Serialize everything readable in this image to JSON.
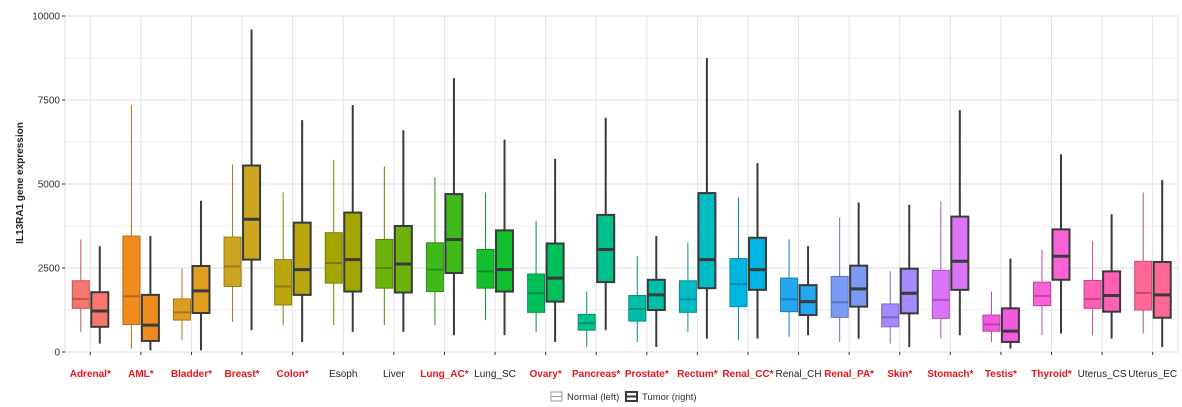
{
  "chart_data": {
    "type": "boxplot",
    "ylabel": "IL13RA1 gene expression",
    "ylim": [
      0,
      10000
    ],
    "yticks": [
      0,
      2500,
      5000,
      7500,
      10000
    ],
    "grid": true,
    "legend": {
      "placement": "bottom-center",
      "entries": [
        {
          "label": "Normal (left)"
        },
        {
          "label": "Tumor (right)"
        }
      ]
    },
    "categories": [
      {
        "name": "Adrenal*",
        "highlight": true,
        "color": "#F8766D",
        "normal": {
          "min": 600,
          "q1": 1300,
          "median": 1580,
          "q3": 2120,
          "max": 3350
        },
        "tumor": {
          "min": 250,
          "q1": 750,
          "median": 1220,
          "q3": 1780,
          "max": 3150
        }
      },
      {
        "name": "AML*",
        "highlight": true,
        "color": "#F08C1E",
        "normal": {
          "min": 100,
          "q1": 820,
          "median": 1660,
          "q3": 3450,
          "max": 7350
        },
        "tumor": {
          "min": 50,
          "q1": 330,
          "median": 800,
          "q3": 1700,
          "max": 3450
        }
      },
      {
        "name": "Bladder*",
        "highlight": true,
        "color": "#E09E20",
        "normal": {
          "min": 350,
          "q1": 950,
          "median": 1180,
          "q3": 1580,
          "max": 2480
        },
        "tumor": {
          "min": 50,
          "q1": 1160,
          "median": 1820,
          "q3": 2560,
          "max": 4500
        }
      },
      {
        "name": "Breast*",
        "highlight": true,
        "color": "#CDA51F",
        "normal": {
          "min": 900,
          "q1": 1950,
          "median": 2550,
          "q3": 3420,
          "max": 5580
        },
        "tumor": {
          "min": 650,
          "q1": 2750,
          "median": 3950,
          "q3": 5550,
          "max": 9600
        }
      },
      {
        "name": "Colon*",
        "highlight": true,
        "color": "#BAA60D",
        "normal": {
          "min": 800,
          "q1": 1400,
          "median": 1950,
          "q3": 2750,
          "max": 4750
        },
        "tumor": {
          "min": 300,
          "q1": 1700,
          "median": 2450,
          "q3": 3850,
          "max": 6900
        }
      },
      {
        "name": "Esoph",
        "highlight": false,
        "color": "#A3A500",
        "normal": {
          "min": 800,
          "q1": 2050,
          "median": 2650,
          "q3": 3550,
          "max": 5720
        },
        "tumor": {
          "min": 600,
          "q1": 1800,
          "median": 2750,
          "q3": 4150,
          "max": 7350
        }
      },
      {
        "name": "Liver",
        "highlight": false,
        "color": "#6DB20A",
        "normal": {
          "min": 800,
          "q1": 1900,
          "median": 2500,
          "q3": 3350,
          "max": 5520
        },
        "tumor": {
          "min": 600,
          "q1": 1770,
          "median": 2620,
          "q3": 3750,
          "max": 6600
        }
      },
      {
        "name": "Lung_AC*",
        "highlight": true,
        "color": "#3EBA1A",
        "normal": {
          "min": 800,
          "q1": 1800,
          "median": 2450,
          "q3": 3250,
          "max": 5200
        },
        "tumor": {
          "min": 500,
          "q1": 2350,
          "median": 3350,
          "q3": 4700,
          "max": 8150
        }
      },
      {
        "name": "Lung_SC",
        "highlight": false,
        "color": "#12C02E",
        "normal": {
          "min": 950,
          "q1": 1900,
          "median": 2400,
          "q3": 3050,
          "max": 4750
        },
        "tumor": {
          "min": 500,
          "q1": 1800,
          "median": 2450,
          "q3": 3620,
          "max": 6320
        }
      },
      {
        "name": "Ovary*",
        "highlight": true,
        "color": "#00C15A",
        "normal": {
          "min": 600,
          "q1": 1180,
          "median": 1750,
          "q3": 2320,
          "max": 3900
        },
        "tumor": {
          "min": 300,
          "q1": 1500,
          "median": 2200,
          "q3": 3230,
          "max": 5750
        }
      },
      {
        "name": "Pancreas*",
        "highlight": true,
        "color": "#00C08B",
        "normal": {
          "min": 150,
          "q1": 650,
          "median": 860,
          "q3": 1120,
          "max": 1800
        },
        "tumor": {
          "min": 650,
          "q1": 2080,
          "median": 3050,
          "q3": 4080,
          "max": 6970
        }
      },
      {
        "name": "Prostate*",
        "highlight": true,
        "color": "#00BFA8",
        "normal": {
          "min": 300,
          "q1": 920,
          "median": 1280,
          "q3": 1680,
          "max": 2850
        },
        "tumor": {
          "min": 150,
          "q1": 1250,
          "median": 1700,
          "q3": 2150,
          "max": 3450
        }
      },
      {
        "name": "Rectum*",
        "highlight": true,
        "color": "#00BCC4",
        "normal": {
          "min": 600,
          "q1": 1180,
          "median": 1570,
          "q3": 2120,
          "max": 3250
        },
        "tumor": {
          "min": 400,
          "q1": 1900,
          "median": 2750,
          "q3": 4730,
          "max": 8750
        }
      },
      {
        "name": "Renal_CC*",
        "highlight": true,
        "color": "#00B4E3",
        "normal": {
          "min": 350,
          "q1": 1350,
          "median": 2020,
          "q3": 2780,
          "max": 4600
        },
        "tumor": {
          "min": 400,
          "q1": 1850,
          "median": 2450,
          "q3": 3400,
          "max": 5620
        }
      },
      {
        "name": "Renal_CH",
        "highlight": false,
        "color": "#22A7F0",
        "normal": {
          "min": 450,
          "q1": 1200,
          "median": 1570,
          "q3": 2200,
          "max": 3350
        },
        "tumor": {
          "min": 500,
          "q1": 1100,
          "median": 1500,
          "q3": 1990,
          "max": 3150
        }
      },
      {
        "name": "Renal_PA*",
        "highlight": true,
        "color": "#7B9AF6",
        "normal": {
          "min": 300,
          "q1": 1030,
          "median": 1480,
          "q3": 2250,
          "max": 4000
        },
        "tumor": {
          "min": 400,
          "q1": 1350,
          "median": 1880,
          "q3": 2570,
          "max": 4450
        }
      },
      {
        "name": "Skin*",
        "highlight": true,
        "color": "#A58AFF",
        "normal": {
          "min": 250,
          "q1": 750,
          "median": 1030,
          "q3": 1430,
          "max": 2400
        },
        "tumor": {
          "min": 150,
          "q1": 1150,
          "median": 1750,
          "q3": 2480,
          "max": 4380
        }
      },
      {
        "name": "Stomach*",
        "highlight": true,
        "color": "#DA74F8",
        "normal": {
          "min": 400,
          "q1": 1000,
          "median": 1550,
          "q3": 2430,
          "max": 4480
        },
        "tumor": {
          "min": 500,
          "q1": 1850,
          "median": 2700,
          "q3": 4030,
          "max": 7200
        }
      },
      {
        "name": "Testis*",
        "highlight": true,
        "color": "#F25ADE",
        "normal": {
          "min": 300,
          "q1": 620,
          "median": 820,
          "q3": 1100,
          "max": 1800
        },
        "tumor": {
          "min": 100,
          "q1": 300,
          "median": 620,
          "q3": 1300,
          "max": 2780
        }
      },
      {
        "name": "Thyroid*",
        "highlight": true,
        "color": "#FB61D7",
        "normal": {
          "min": 500,
          "q1": 1380,
          "median": 1670,
          "q3": 2080,
          "max": 3050
        },
        "tumor": {
          "min": 550,
          "q1": 2150,
          "median": 2850,
          "q3": 3650,
          "max": 5880
        }
      },
      {
        "name": "Uterus_CS",
        "highlight": false,
        "color": "#FF5FB5",
        "normal": {
          "min": 500,
          "q1": 1300,
          "median": 1580,
          "q3": 2130,
          "max": 3300
        },
        "tumor": {
          "min": 400,
          "q1": 1200,
          "median": 1680,
          "q3": 2400,
          "max": 4100
        }
      },
      {
        "name": "Uterus_EC",
        "highlight": false,
        "color": "#FF6896",
        "normal": {
          "min": 550,
          "q1": 1250,
          "median": 1760,
          "q3": 2700,
          "max": 4750
        },
        "tumor": {
          "min": 150,
          "q1": 1020,
          "median": 1700,
          "q3": 2680,
          "max": 5120
        }
      }
    ]
  },
  "colors": {
    "highlight_label": "#E8141B",
    "normal_label": "#222222",
    "grid": "#DCDCDC",
    "normal_outline": "#999999",
    "tumor_outline": "#3A3A3A"
  }
}
